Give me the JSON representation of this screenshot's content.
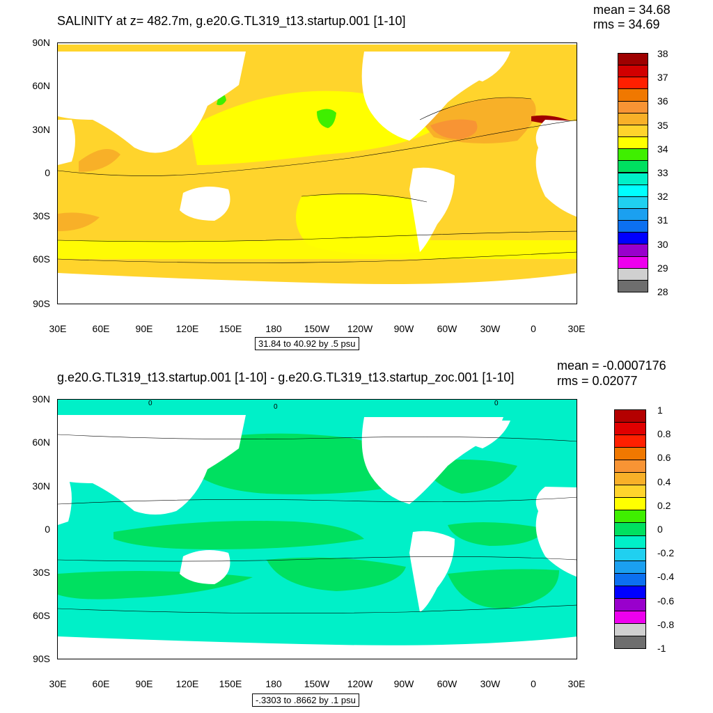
{
  "panel1": {
    "title": "SALINITY at z= 482.7m, g.e20.G.TL319_t13.startup.001 [1-10]",
    "mean": "mean = 34.68",
    "rms": "rms = 34.69",
    "range_label": "31.84 to 40.92 by .5 psu",
    "lat_labels": [
      "90N",
      "60N",
      "30N",
      "0",
      "30S",
      "60S",
      "90S"
    ],
    "lon_labels": [
      "30E",
      "60E",
      "90E",
      "120E",
      "150E",
      "180",
      "150W",
      "120W",
      "90W",
      "60W",
      "30W",
      "0",
      "30E"
    ],
    "colorbar_labels": [
      "38",
      "37",
      "36",
      "35",
      "34",
      "33",
      "32",
      "31",
      "30",
      "29",
      "28"
    ],
    "colorbar_colors": [
      "#9e0000",
      "#d10000",
      "#ff1f00",
      "#f07800",
      "#f89434",
      "#f8b028",
      "#ffd42c",
      "#ffff00",
      "#3fef00",
      "#00e060",
      "#00f0c8",
      "#00ffff",
      "#20d0f0",
      "#1ba0f0",
      "#0c70f0",
      "#0000ff",
      "#9900cc",
      "#ee00ee",
      "#d0d0d0",
      "#6e6e6e"
    ]
  },
  "panel2": {
    "title": "g.e20.G.TL319_t13.startup.001 [1-10] - g.e20.G.TL319_t13.startup_zoc.001 [1-10]",
    "mean": "mean = -0.0007176",
    "rms": "rms = 0.02077",
    "range_label": "-.3303 to .8662 by .1 psu",
    "lat_labels": [
      "90N",
      "60N",
      "30N",
      "0",
      "30S",
      "60S",
      "90S"
    ],
    "lon_labels": [
      "30E",
      "60E",
      "90E",
      "120E",
      "150E",
      "180",
      "150W",
      "120W",
      "90W",
      "60W",
      "30W",
      "0",
      "30E"
    ],
    "colorbar_labels": [
      "1",
      "0.8",
      "0.6",
      "0.4",
      "0.2",
      "0",
      "-0.2",
      "-0.4",
      "-0.6",
      "-0.8",
      "-1"
    ],
    "colorbar_colors": [
      "#b40000",
      "#e00000",
      "#ff2000",
      "#f07800",
      "#f89434",
      "#f8b028",
      "#ffd42c",
      "#ffff00",
      "#3fef00",
      "#00e060",
      "#00f0c8",
      "#20d0f0",
      "#1ba0f0",
      "#0c70f0",
      "#0000ff",
      "#9900cc",
      "#ee00ee",
      "#d0d0d0",
      "#6e6e6e"
    ],
    "zero_contour_label": "0"
  }
}
